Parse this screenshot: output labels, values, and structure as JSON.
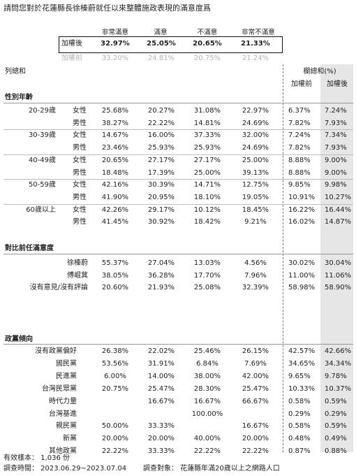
{
  "title": "請問您對於花蓮縣長徐榛蔚就任以來整體施政表現的滿意度爲",
  "columns": [
    "非常滿意",
    "滿意",
    "不滿意",
    "非常不滿意"
  ],
  "after": {
    "label": "加權後",
    "values": [
      "32.97%",
      "25.05%",
      "20.65%",
      "21.33%"
    ]
  },
  "before": {
    "label": "加權前",
    "values": [
      "33.20%",
      "24.81%",
      "20.75%",
      "21.24%"
    ]
  },
  "row_total_label": "列總和",
  "col_total_label": "欄總和(%)",
  "col_total_before": "加權前",
  "col_total_after": "加權後",
  "sections": {
    "gender_age": "性別年齡",
    "satisfaction": "對比前任滿意度",
    "party": "政黨傾向"
  },
  "age_groups": [
    "20-29歲",
    "30-39歲",
    "40-49歲",
    "50-59歲",
    "60歲以上"
  ],
  "gender_rows": [
    {
      "gender": "女性",
      "v": [
        "25.68%",
        "20.27%",
        "31.08%",
        "22.97%"
      ],
      "before": "6.37%",
      "after": "7.24%"
    },
    {
      "gender": "男性",
      "v": [
        "38.27%",
        "22.22%",
        "14.81%",
        "24.69%"
      ],
      "before": "7.82%",
      "after": "7.93%"
    },
    {
      "gender": "女性",
      "v": [
        "14.67%",
        "16.00%",
        "37.33%",
        "32.00%"
      ],
      "before": "7.24%",
      "after": "7.34%"
    },
    {
      "gender": "男性",
      "v": [
        "23.46%",
        "25.93%",
        "25.93%",
        "24.69%"
      ],
      "before": "7.82%",
      "after": "7.93%"
    },
    {
      "gender": "女性",
      "v": [
        "20.65%",
        "27.17%",
        "27.17%",
        "25.00%"
      ],
      "before": "8.88%",
      "after": "9.00%"
    },
    {
      "gender": "男性",
      "v": [
        "18.48%",
        "17.39%",
        "25.00%",
        "39.13%"
      ],
      "before": "8.88%",
      "after": "9.00%"
    },
    {
      "gender": "女性",
      "v": [
        "42.16%",
        "30.39%",
        "14.71%",
        "12.75%"
      ],
      "before": "9.85%",
      "after": "9.98%"
    },
    {
      "gender": "男性",
      "v": [
        "41.90%",
        "20.95%",
        "18.10%",
        "19.05%"
      ],
      "before": "10.91%",
      "after": "10.27%"
    },
    {
      "gender": "女性",
      "v": [
        "42.26%",
        "29.17%",
        "10.12%",
        "18.45%"
      ],
      "before": "16.22%",
      "after": "16.44%"
    },
    {
      "gender": "男性",
      "v": [
        "41.45%",
        "30.92%",
        "18.42%",
        "9.21%"
      ],
      "before": "16.02%",
      "after": "14.87%"
    }
  ],
  "prev_rows": [
    {
      "label": "徐榛蔚",
      "v": [
        "55.37%",
        "27.04%",
        "13.03%",
        "4.56%"
      ],
      "before": "30.02%",
      "after": "30.04%"
    },
    {
      "label": "傅崐萁",
      "v": [
        "38.05%",
        "36.28%",
        "17.70%",
        "7.96%"
      ],
      "before": "11.00%",
      "after": "11.06%"
    },
    {
      "label": "沒有意見/沒有評論",
      "v": [
        "20.60%",
        "21.93%",
        "25.08%",
        "32.39%"
      ],
      "before": "58.98%",
      "after": "58.90%"
    }
  ],
  "party_rows": [
    {
      "label": "沒有政黨偏好",
      "v": [
        "26.38%",
        "22.02%",
        "25.46%",
        "26.15%"
      ],
      "before": "42.57%",
      "after": "42.66%"
    },
    {
      "label": "國民黨",
      "v": [
        "53.56%",
        "31.91%",
        "6.84%",
        "7.69%"
      ],
      "before": "34.65%",
      "after": "34.34%"
    },
    {
      "label": "民進黨",
      "v": [
        "6.00%",
        "14.00%",
        "38.00%",
        "42.00%"
      ],
      "before": "9.65%",
      "after": "9.78%"
    },
    {
      "label": "台灣民眾黨",
      "v": [
        "20.75%",
        "25.47%",
        "28.30%",
        "25.47%"
      ],
      "before": "10.33%",
      "after": "10.37%"
    },
    {
      "label": "時代力量",
      "v": [
        "",
        "16.67%",
        "16.67%",
        "66.67%"
      ],
      "before": "0.58%",
      "after": "0.59%"
    },
    {
      "label": "台灣基進",
      "v": [
        "",
        "",
        "100.00%",
        ""
      ],
      "before": "0.29%",
      "after": "0.29%"
    },
    {
      "label": "親民黨",
      "v": [
        "50.00%",
        "33.33%",
        "",
        "16.67%"
      ],
      "before": "0.58%",
      "after": "0.59%"
    },
    {
      "label": "新黨",
      "v": [
        "20.00%",
        "20.00%",
        "40.00%",
        "20.00%"
      ],
      "before": "0.48%",
      "after": "0.49%"
    },
    {
      "label": "其他政黨",
      "v": [
        "22.22%",
        "33.33%",
        "22.22%",
        "22.22%"
      ],
      "before": "0.87%",
      "after": "0.88%"
    }
  ],
  "footer": {
    "sample": "有效樣本： 1,036 份",
    "period": "調查時間： 2023.06.29~2023.07.04",
    "target": "調查對象： 花蓮縣年滿20歲以上之網路人口"
  }
}
